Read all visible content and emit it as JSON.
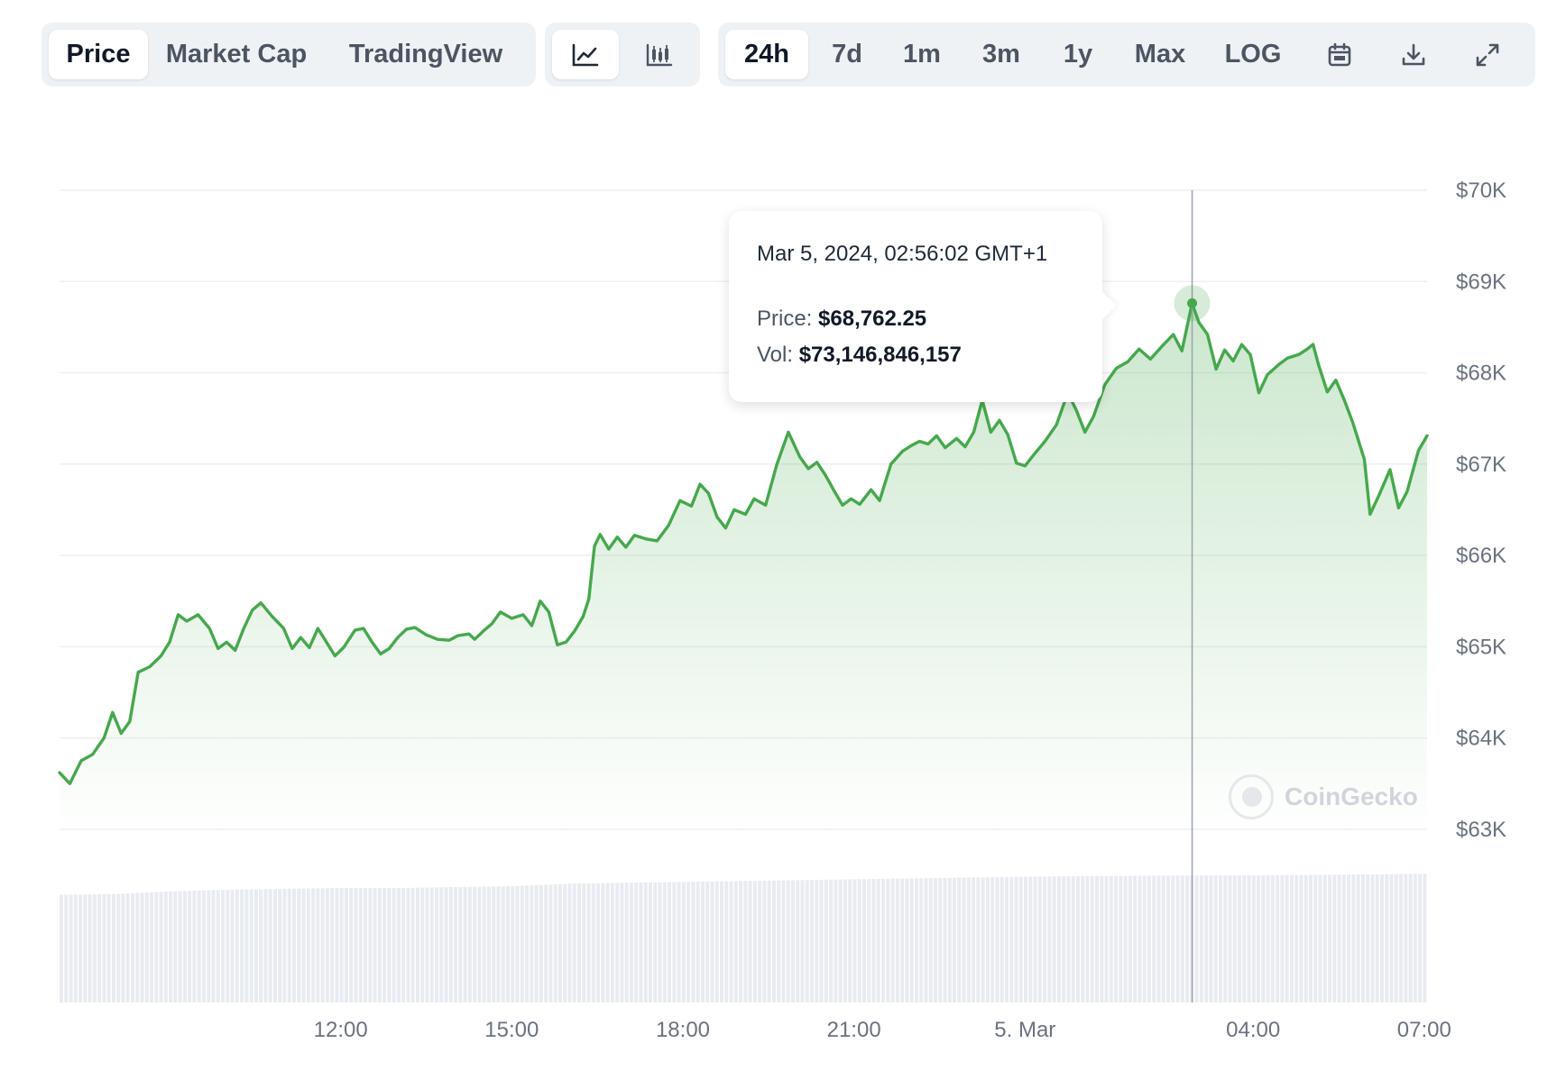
{
  "toolbar": {
    "data_tabs": [
      {
        "label": "Price",
        "active": true
      },
      {
        "label": "Market Cap",
        "active": false
      },
      {
        "label": "TradingView",
        "active": false
      }
    ],
    "chart_type_icons": [
      {
        "icon": "line-chart-icon",
        "active": true
      },
      {
        "icon": "candlestick-chart-icon",
        "active": false
      }
    ],
    "ranges": [
      {
        "label": "24h",
        "active": true
      },
      {
        "label": "7d",
        "active": false
      },
      {
        "label": "1m",
        "active": false
      },
      {
        "label": "3m",
        "active": false
      },
      {
        "label": "1y",
        "active": false
      },
      {
        "label": "Max",
        "active": false
      }
    ],
    "log_label": "LOG",
    "tool_icons": [
      "calendar-icon",
      "download-icon",
      "expand-icon"
    ]
  },
  "tooltip": {
    "date": "Mar 5, 2024, 02:56:02 GMT+1",
    "price_label": "Price:",
    "price_value": "$68,762.25",
    "vol_label": "Vol:",
    "vol_value": "$73,146,846,157"
  },
  "watermark": "CoinGecko",
  "colors": {
    "line": "#46a84c",
    "fill": "#46a84c",
    "volume": "#e8ebf0",
    "grid": "#edeff2"
  },
  "chart_data": {
    "type": "area",
    "title": "",
    "xlabel": "",
    "ylabel": "",
    "y_axis": {
      "position": "right",
      "ticks": [
        "$63K",
        "$64K",
        "$65K",
        "$66K",
        "$67K",
        "$68K",
        "$69K",
        "$70K"
      ],
      "tick_values": [
        63000,
        64000,
        65000,
        66000,
        67000,
        68000,
        69000,
        70000
      ],
      "range": [
        62900,
        70000
      ]
    },
    "x_axis": {
      "ticks": [
        {
          "label": "12:00",
          "hour": 12
        },
        {
          "label": "15:00",
          "hour": 15
        },
        {
          "label": "18:00",
          "hour": 18
        },
        {
          "label": "21:00",
          "hour": 21
        },
        {
          "label": "5. Mar",
          "hour": 24
        },
        {
          "label": "04:00",
          "hour": 28
        },
        {
          "label": "07:00",
          "hour": 31
        }
      ],
      "range_hours": [
        7.07,
        31.05
      ]
    },
    "grid": true,
    "hover_hour": 26.93,
    "series": [
      {
        "values": [
          [
            7.07,
            63620
          ],
          [
            7.25,
            63500
          ],
          [
            7.45,
            63750
          ],
          [
            7.65,
            63820
          ],
          [
            7.85,
            64000
          ],
          [
            8.0,
            64280
          ],
          [
            8.15,
            64050
          ],
          [
            8.3,
            64180
          ],
          [
            8.45,
            64720
          ],
          [
            8.65,
            64780
          ],
          [
            8.85,
            64900
          ],
          [
            9.0,
            65050
          ],
          [
            9.15,
            65350
          ],
          [
            9.3,
            65280
          ],
          [
            9.5,
            65350
          ],
          [
            9.7,
            65200
          ],
          [
            9.85,
            64980
          ],
          [
            10.0,
            65050
          ],
          [
            10.15,
            64960
          ],
          [
            10.3,
            65200
          ],
          [
            10.45,
            65400
          ],
          [
            10.6,
            65480
          ],
          [
            10.8,
            65330
          ],
          [
            11.0,
            65200
          ],
          [
            11.15,
            64980
          ],
          [
            11.3,
            65100
          ],
          [
            11.45,
            64990
          ],
          [
            11.6,
            65200
          ],
          [
            11.75,
            65050
          ],
          [
            11.9,
            64900
          ],
          [
            12.05,
            64990
          ],
          [
            12.25,
            65180
          ],
          [
            12.4,
            65200
          ],
          [
            12.55,
            65050
          ],
          [
            12.7,
            64920
          ],
          [
            12.85,
            64980
          ],
          [
            13.0,
            65100
          ],
          [
            13.15,
            65190
          ],
          [
            13.3,
            65210
          ],
          [
            13.5,
            65130
          ],
          [
            13.7,
            65080
          ],
          [
            13.9,
            65070
          ],
          [
            14.05,
            65120
          ],
          [
            14.25,
            65140
          ],
          [
            14.35,
            65080
          ],
          [
            14.5,
            65170
          ],
          [
            14.65,
            65250
          ],
          [
            14.8,
            65380
          ],
          [
            15.0,
            65310
          ],
          [
            15.2,
            65350
          ],
          [
            15.35,
            65230
          ],
          [
            15.5,
            65500
          ],
          [
            15.65,
            65380
          ],
          [
            15.8,
            65020
          ],
          [
            15.95,
            65050
          ],
          [
            16.1,
            65170
          ],
          [
            16.25,
            65330
          ],
          [
            16.35,
            65520
          ],
          [
            16.45,
            66100
          ],
          [
            16.55,
            66230
          ],
          [
            16.7,
            66070
          ],
          [
            16.85,
            66200
          ],
          [
            17.0,
            66090
          ],
          [
            17.15,
            66220
          ],
          [
            17.35,
            66180
          ],
          [
            17.55,
            66160
          ],
          [
            17.75,
            66330
          ],
          [
            17.95,
            66600
          ],
          [
            18.15,
            66540
          ],
          [
            18.3,
            66780
          ],
          [
            18.45,
            66680
          ],
          [
            18.6,
            66420
          ],
          [
            18.75,
            66300
          ],
          [
            18.9,
            66500
          ],
          [
            19.1,
            66450
          ],
          [
            19.25,
            66620
          ],
          [
            19.45,
            66550
          ],
          [
            19.65,
            67000
          ],
          [
            19.85,
            67350
          ],
          [
            20.05,
            67080
          ],
          [
            20.2,
            66950
          ],
          [
            20.35,
            67020
          ],
          [
            20.5,
            66880
          ],
          [
            20.65,
            66710
          ],
          [
            20.8,
            66550
          ],
          [
            20.95,
            66620
          ],
          [
            21.1,
            66560
          ],
          [
            21.3,
            66720
          ],
          [
            21.45,
            66600
          ],
          [
            21.65,
            67000
          ],
          [
            21.85,
            67140
          ],
          [
            22.0,
            67200
          ],
          [
            22.15,
            67250
          ],
          [
            22.3,
            67220
          ],
          [
            22.45,
            67310
          ],
          [
            22.6,
            67180
          ],
          [
            22.8,
            67280
          ],
          [
            22.95,
            67190
          ],
          [
            23.1,
            67350
          ],
          [
            23.25,
            67700
          ],
          [
            23.4,
            67350
          ],
          [
            23.55,
            67480
          ],
          [
            23.7,
            67320
          ],
          [
            23.85,
            67010
          ],
          [
            24.0,
            66980
          ],
          [
            24.15,
            67100
          ],
          [
            24.35,
            67250
          ],
          [
            24.55,
            67430
          ],
          [
            24.75,
            67780
          ],
          [
            24.9,
            67590
          ],
          [
            25.05,
            67350
          ],
          [
            25.2,
            67520
          ],
          [
            25.4,
            67870
          ],
          [
            25.6,
            68050
          ],
          [
            25.8,
            68120
          ],
          [
            26.0,
            68260
          ],
          [
            26.2,
            68150
          ],
          [
            26.4,
            68290
          ],
          [
            26.6,
            68420
          ],
          [
            26.75,
            68240
          ],
          [
            26.93,
            68762
          ],
          [
            27.05,
            68550
          ],
          [
            27.2,
            68420
          ],
          [
            27.35,
            68040
          ],
          [
            27.5,
            68250
          ],
          [
            27.65,
            68130
          ],
          [
            27.8,
            68310
          ],
          [
            27.95,
            68200
          ],
          [
            28.1,
            67780
          ],
          [
            28.25,
            67980
          ],
          [
            28.45,
            68090
          ],
          [
            28.6,
            68160
          ],
          [
            28.8,
            68200
          ],
          [
            28.95,
            68260
          ],
          [
            29.05,
            68310
          ],
          [
            29.15,
            68080
          ],
          [
            29.3,
            67790
          ],
          [
            29.45,
            67920
          ],
          [
            29.6,
            67700
          ],
          [
            29.75,
            67450
          ],
          [
            29.95,
            67050
          ],
          [
            30.05,
            66450
          ],
          [
            30.2,
            66650
          ],
          [
            30.4,
            66940
          ],
          [
            30.55,
            66520
          ],
          [
            30.7,
            66700
          ],
          [
            30.9,
            67150
          ],
          [
            31.05,
            67310
          ]
        ]
      }
    ],
    "volume_series": {
      "unit": "USD",
      "range": [
        0,
        80000000000
      ],
      "hover_value": 73146846157,
      "values": [
        [
          7.07,
          62000000000
        ],
        [
          8.0,
          62500000000
        ],
        [
          9.0,
          64000000000
        ],
        [
          10.0,
          65000000000
        ],
        [
          11.0,
          65500000000
        ],
        [
          12.0,
          66000000000
        ],
        [
          13.0,
          66000000000
        ],
        [
          14.0,
          66500000000
        ],
        [
          15.0,
          67000000000
        ],
        [
          16.0,
          68500000000
        ],
        [
          17.0,
          69000000000
        ],
        [
          18.0,
          69500000000
        ],
        [
          19.0,
          70000000000
        ],
        [
          20.0,
          70500000000
        ],
        [
          21.0,
          71000000000
        ],
        [
          22.0,
          71500000000
        ],
        [
          23.0,
          72000000000
        ],
        [
          24.0,
          72500000000
        ],
        [
          25.0,
          72800000000
        ],
        [
          26.0,
          73000000000
        ],
        [
          26.93,
          73146846157
        ],
        [
          28.0,
          73300000000
        ],
        [
          29.0,
          73500000000
        ],
        [
          30.0,
          73800000000
        ],
        [
          31.05,
          74200000000
        ]
      ]
    }
  }
}
